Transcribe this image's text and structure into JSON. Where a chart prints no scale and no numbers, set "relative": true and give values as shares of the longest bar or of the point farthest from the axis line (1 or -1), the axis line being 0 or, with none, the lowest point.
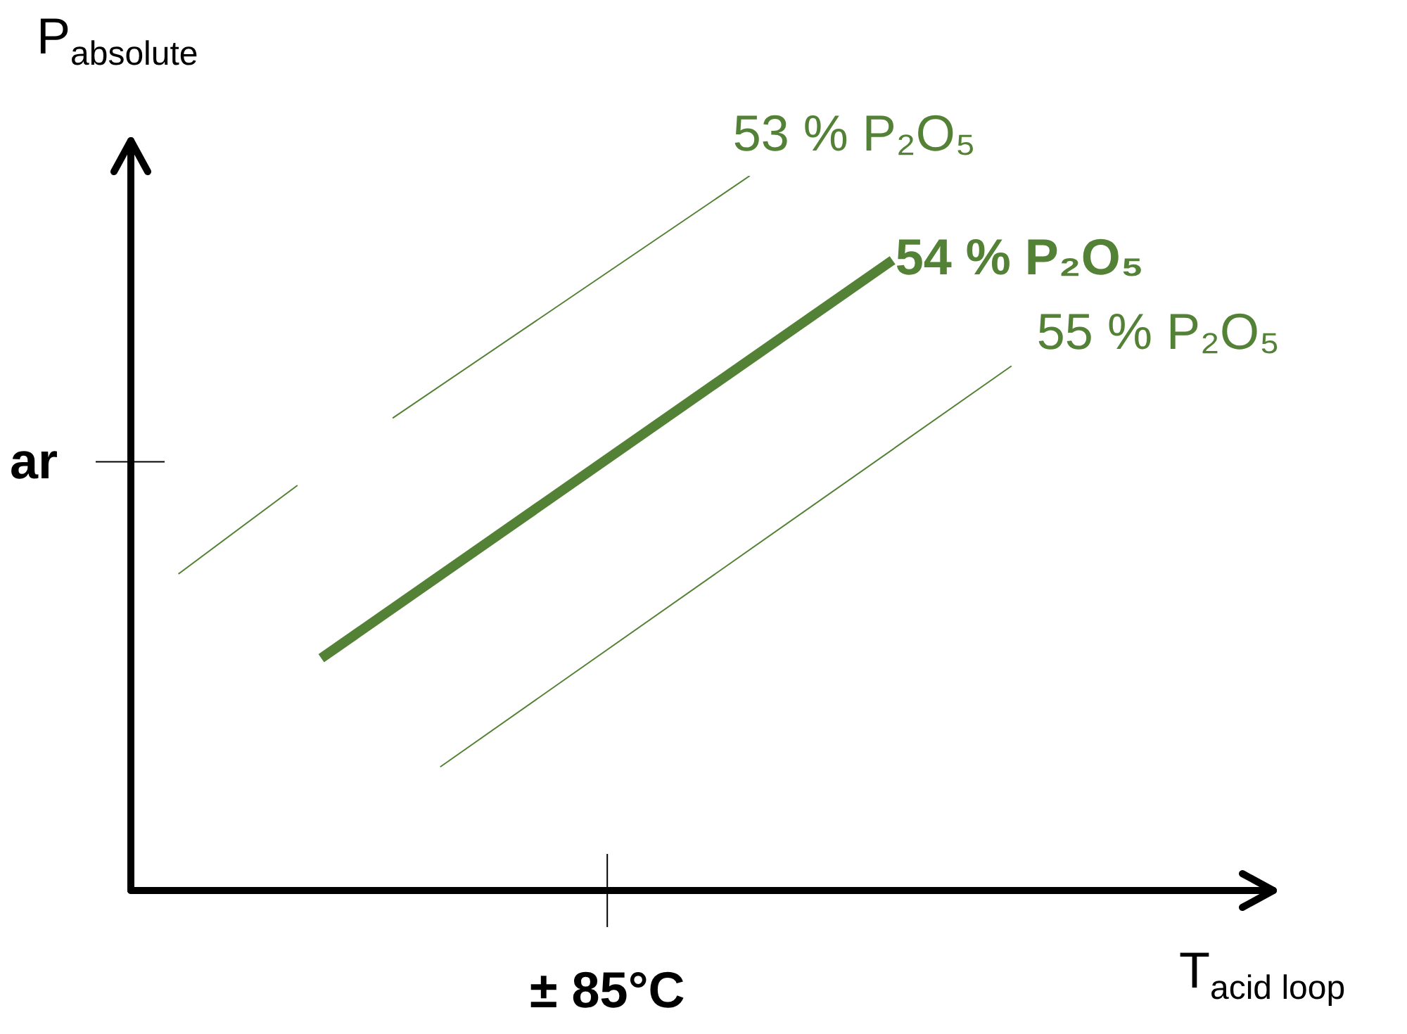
{
  "chart_data": {
    "type": "line",
    "relative": true,
    "xlabel": "T$_{acid loop}$",
    "ylabel": "P$_{absolute}$",
    "marker": "none",
    "categories": [
      null,
      null,
      null,
      null,
      null,
      null,
      null,
      null,
      null,
      null,
      null,
      null,
      null,
      null,
      null,
      null,
      null,
      null,
      null,
      null,
      null,
      null,
      null,
      null,
      null,
      null,
      null,
      null,
      null,
      null,
      null,
      null,
      null,
      null,
      null,
      null,
      null,
      null,
      null,
      null,
      null,
      null,
      null,
      null,
      null,
      null,
      null,
      null,
      null
    ],
    "series": [
      {
        "color": "#538135",
        "values": [
          null,
          null,
          0.443,
          null,
          null,
          null,
          null,
          0.567,
          null,
          null,
          null,
          null,
          null,
          null,
          null,
          null,
          null,
          null,
          null,
          null,
          null,
          null,
          null,
          null,
          null,
          null,
          null,
          null,
          null,
          null,
          null,
          null,
          null,
          null,
          null,
          null,
          null,
          null,
          null,
          null,
          null,
          null,
          null,
          null,
          null,
          null,
          null,
          null,
          null
        ]
      },
      {
        "name": "53 % P₂O₅",
        "color": "#538135",
        "values": [
          null,
          null,
          null,
          null,
          null,
          null,
          null,
          null,
          null,
          null,
          null,
          0.661,
          null,
          null,
          null,
          null,
          null,
          null,
          null,
          null,
          null,
          null,
          null,
          null,
          null,
          null,
          1,
          null,
          null,
          null,
          null,
          null,
          null,
          null,
          null,
          null,
          null,
          null,
          null,
          null,
          null,
          null,
          null,
          null,
          null,
          null,
          null,
          null,
          null
        ]
      },
      {
        "name": "54 % P₂O₅",
        "color": "#538135",
        "values": [
          null,
          null,
          null,
          null,
          null,
          null,
          null,
          null,
          0.325,
          null,
          null,
          null,
          null,
          null,
          null,
          null,
          null,
          null,
          null,
          null,
          null,
          null,
          null,
          null,
          null,
          null,
          null,
          null,
          null,
          null,
          null,
          null,
          0.882,
          null,
          null,
          null,
          null,
          null,
          null,
          null,
          null,
          null,
          null,
          null,
          null,
          null,
          null,
          null,
          null
        ]
      },
      {
        "name": "55 % P₂O₅",
        "color": "#538135",
        "values": [
          null,
          null,
          null,
          null,
          null,
          null,
          null,
          null,
          null,
          null,
          null,
          null,
          null,
          0.173,
          null,
          null,
          null,
          null,
          null,
          null,
          null,
          null,
          null,
          null,
          null,
          null,
          null,
          null,
          null,
          null,
          null,
          null,
          null,
          null,
          null,
          null,
          null,
          0.734,
          null,
          null,
          null,
          null,
          null,
          null,
          null,
          null,
          null,
          null,
          null
        ]
      }
    ],
    "annotations": [
      "ar",
      "± 85°C"
    ]
  }
}
